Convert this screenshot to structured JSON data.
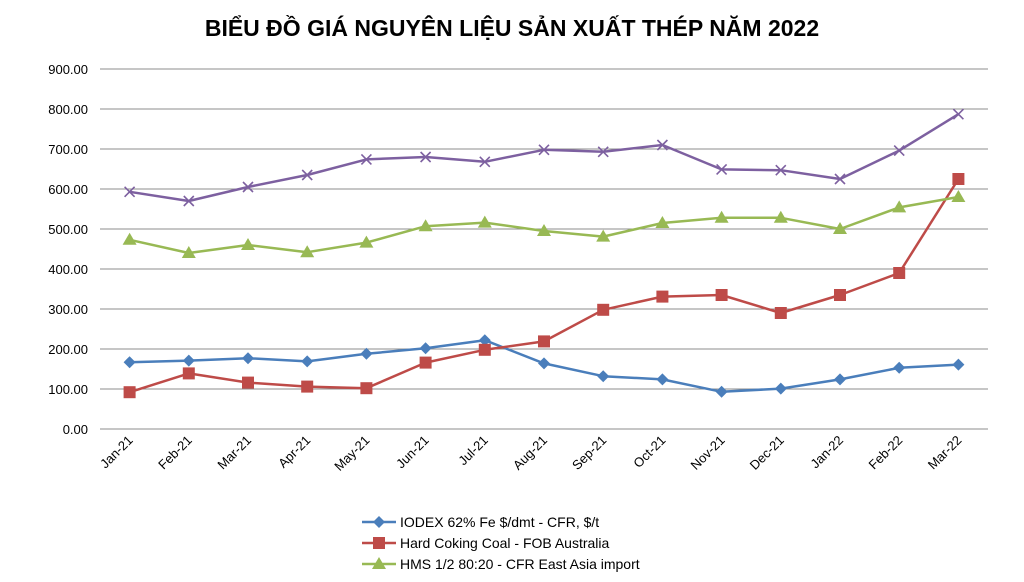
{
  "chart_data": {
    "type": "line",
    "title": "BIỂU ĐỒ GIÁ NGUYÊN LIỆU SẢN XUẤT THÉP NĂM 2022",
    "xlabel": "",
    "ylabel": "",
    "ylim": [
      0,
      900
    ],
    "ytick_step": 100,
    "ytick_labels": [
      "0.00",
      "100.00",
      "200.00",
      "300.00",
      "400.00",
      "500.00",
      "600.00",
      "700.00",
      "800.00",
      "900.00"
    ],
    "grid": true,
    "legend_position": "bottom",
    "categories": [
      "Jan-21",
      "Feb-21",
      "Mar-21",
      "Apr-21",
      "May-21",
      "Jun-21",
      "Jul-21",
      "Aug-21",
      "Sep-21",
      "Oct-21",
      "Nov-21",
      "Dec-21",
      "Jan-22",
      "Feb-22",
      "Mar-22"
    ],
    "series": [
      {
        "name": "IODEX 62% Fe $/dmt - CFR, $/t",
        "color": "#4a7ebb",
        "marker": "diamond",
        "values": [
          167,
          171,
          177,
          169,
          188,
          202,
          222,
          164,
          132,
          124,
          93,
          101,
          124,
          153,
          161
        ]
      },
      {
        "name": "Hard Coking Coal - FOB Australia",
        "color": "#be4b48",
        "marker": "square",
        "values": [
          92,
          139,
          116,
          106,
          102,
          166,
          198,
          219,
          298,
          331,
          335,
          290,
          335,
          390,
          625
        ]
      },
      {
        "name": "HMS 1/2 80:20 - CFR East Asia import",
        "color": "#98b954",
        "marker": "triangle",
        "values": [
          473,
          440,
          460,
          442,
          466,
          507,
          516,
          495,
          481,
          515,
          528,
          528,
          500,
          554,
          580
        ]
      },
      {
        "name": "",
        "color": "#7d60a0",
        "marker": "x",
        "values": [
          593,
          570,
          605,
          635,
          674,
          680,
          668,
          698,
          693,
          710,
          649,
          647,
          625,
          696,
          787
        ]
      }
    ]
  }
}
